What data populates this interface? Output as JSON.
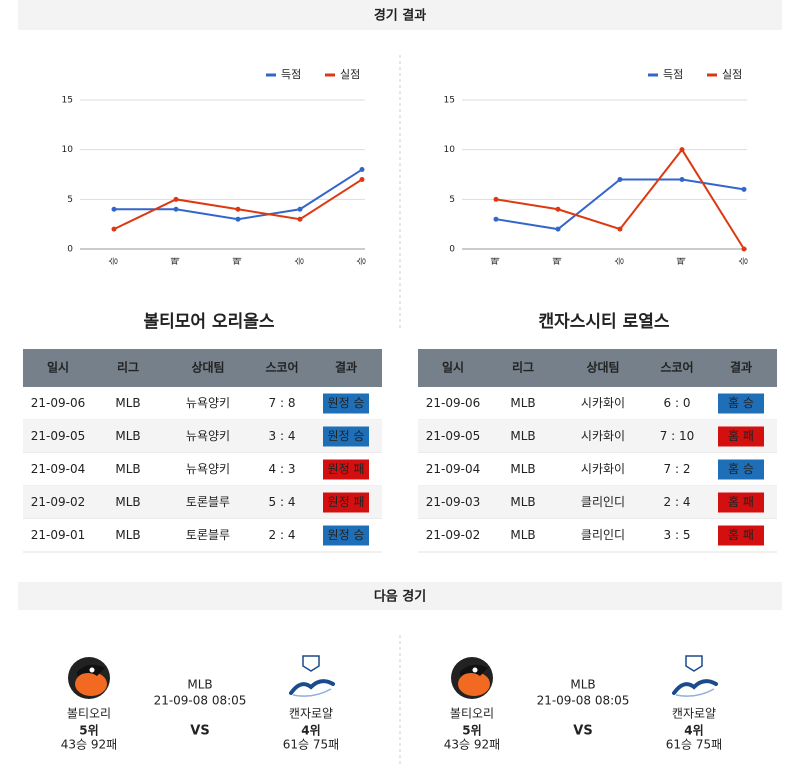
{
  "header": {
    "title": "경기 결과"
  },
  "chart_data": [
    {
      "type": "line",
      "categories": [
        "승",
        "패",
        "패",
        "승",
        "승"
      ],
      "series": [
        {
          "name": "득점",
          "color": "#3366cc",
          "values": [
            4,
            4,
            3,
            4,
            8
          ]
        },
        {
          "name": "실점",
          "color": "#dc3912",
          "values": [
            2,
            5,
            4,
            3,
            7
          ]
        }
      ],
      "ylim": [
        0,
        15
      ],
      "yticks": [
        0,
        5,
        10,
        15
      ],
      "grid": true,
      "legend": "top-right"
    },
    {
      "type": "line",
      "categories": [
        "패",
        "패",
        "승",
        "패",
        "승"
      ],
      "series": [
        {
          "name": "득점",
          "color": "#3366cc",
          "values": [
            3,
            2,
            7,
            7,
            6
          ]
        },
        {
          "name": "실점",
          "color": "#dc3912",
          "values": [
            5,
            4,
            2,
            10,
            0
          ]
        }
      ],
      "ylim": [
        0,
        15
      ],
      "yticks": [
        0,
        5,
        10,
        15
      ],
      "grid": true,
      "legend": "top-right"
    }
  ],
  "teams": [
    {
      "name": "볼티모어 오리올스",
      "table": {
        "columns": [
          "일시",
          "리그",
          "상대팀",
          "스코어",
          "결과"
        ],
        "rows": [
          [
            "21-09-06",
            "MLB",
            "뉴욕양키",
            "7 : 8",
            "원정 승"
          ],
          [
            "21-09-05",
            "MLB",
            "뉴욕양키",
            "3 : 4",
            "원정 승"
          ],
          [
            "21-09-04",
            "MLB",
            "뉴욕양키",
            "4 : 3",
            "원정 패"
          ],
          [
            "21-09-02",
            "MLB",
            "토론블루",
            "5 : 4",
            "원정 패"
          ],
          [
            "21-09-01",
            "MLB",
            "토론블루",
            "2 : 4",
            "원정 승"
          ]
        ],
        "badge_colors": [
          "#1f6fb8",
          "#1f6fb8",
          "#d40f0f",
          "#d40f0f",
          "#1f6fb8"
        ]
      }
    },
    {
      "name": "캔자스시티 로열스",
      "table": {
        "columns": [
          "일시",
          "리그",
          "상대팀",
          "스코어",
          "결과"
        ],
        "rows": [
          [
            "21-09-06",
            "MLB",
            "시카화이",
            "6 : 0",
            "홈 승"
          ],
          [
            "21-09-05",
            "MLB",
            "시카화이",
            "7 : 10",
            "홈 패"
          ],
          [
            "21-09-04",
            "MLB",
            "시카화이",
            "7 : 2",
            "홈 승"
          ],
          [
            "21-09-03",
            "MLB",
            "클리인디",
            "2 : 4",
            "홈 패"
          ],
          [
            "21-09-02",
            "MLB",
            "클리인디",
            "3 : 5",
            "홈 패"
          ]
        ],
        "badge_colors": [
          "#1f6fb8",
          "#d40f0f",
          "#1f6fb8",
          "#d40f0f",
          "#d40f0f"
        ]
      }
    }
  ],
  "next_game": {
    "title": "다음 경기",
    "games": [
      {
        "home": {
          "name": "볼티오리",
          "rank": "5위",
          "record": "43승 92패"
        },
        "league": "MLB",
        "datetime": "21-09-08 08:05",
        "vs": "VS",
        "away": {
          "name": "캔자로얄",
          "rank": "4위",
          "record": "61승 75패"
        }
      },
      {
        "home": {
          "name": "볼티오리",
          "rank": "5위",
          "record": "43승 92패"
        },
        "league": "MLB",
        "datetime": "21-09-08 08:05",
        "vs": "VS",
        "away": {
          "name": "캔자로얄",
          "rank": "4위",
          "record": "61승 75패"
        }
      }
    ]
  }
}
